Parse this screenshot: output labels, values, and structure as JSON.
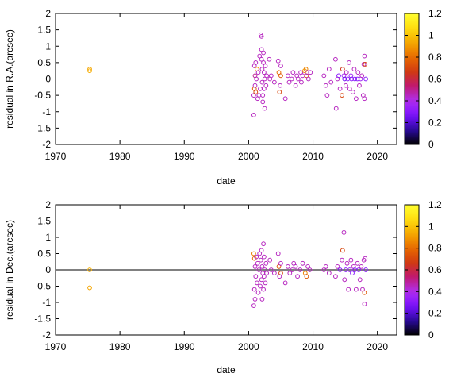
{
  "colors": {
    "palette_stops": [
      "#000000",
      "#2a0a9e",
      "#7a10ff",
      "#b030f0",
      "#c01870",
      "#d03a10",
      "#e86a00",
      "#f5a800",
      "#ffde10",
      "#ffff30"
    ],
    "zero_line": "#000000"
  },
  "chart_data": [
    {
      "type": "scatter",
      "title": "",
      "xlabel": "date",
      "ylabel": "residual in R.A.(arcsec)",
      "xlim": [
        1970,
        2023
      ],
      "ylim": [
        -2,
        2
      ],
      "xticks": [
        "1970",
        "1980",
        "1990",
        "2000",
        "2010",
        "2020"
      ],
      "yticks": [
        "-2",
        "-1.5",
        "-1",
        "-0.5",
        "0",
        "0.5",
        "1",
        "1.5",
        "2"
      ],
      "colorbar": {
        "range": [
          0,
          1.2
        ],
        "ticks": [
          "0",
          "0.2",
          "0.4",
          "0.6",
          "0.8",
          "1",
          "1.2"
        ]
      },
      "reference_line_y": 0,
      "grid": false,
      "marker": "open circle",
      "points": [
        {
          "x": 1975.3,
          "y": 0.25,
          "c": 0.95
        },
        {
          "x": 1975.3,
          "y": 0.3,
          "c": 0.93
        },
        {
          "x": 2000.8,
          "y": -1.1,
          "c": 0.45
        },
        {
          "x": 2000.8,
          "y": -0.5,
          "c": 0.45
        },
        {
          "x": 2000.9,
          "y": -0.3,
          "c": 0.75
        },
        {
          "x": 2000.9,
          "y": 0.4,
          "c": 0.45
        },
        {
          "x": 2001.0,
          "y": 0.1,
          "c": 0.5
        },
        {
          "x": 2001.0,
          "y": -0.2,
          "c": 0.45
        },
        {
          "x": 2001.1,
          "y": 0.5,
          "c": 0.45
        },
        {
          "x": 2001.1,
          "y": -0.4,
          "c": 0.7
        },
        {
          "x": 2001.2,
          "y": 0.0,
          "c": 0.45
        },
        {
          "x": 2001.3,
          "y": 0.3,
          "c": 0.9
        },
        {
          "x": 2001.4,
          "y": -0.6,
          "c": 0.45
        },
        {
          "x": 2001.5,
          "y": 0.2,
          "c": 0.45
        },
        {
          "x": 2001.6,
          "y": -0.5,
          "c": 0.45
        },
        {
          "x": 2001.7,
          "y": 0.7,
          "c": 0.45
        },
        {
          "x": 2001.8,
          "y": -0.3,
          "c": 0.45
        },
        {
          "x": 2001.9,
          "y": 1.35,
          "c": 0.45
        },
        {
          "x": 2002.0,
          "y": 1.3,
          "c": 0.45
        },
        {
          "x": 2002.0,
          "y": 0.9,
          "c": 0.45
        },
        {
          "x": 2002.0,
          "y": 0.6,
          "c": 0.45
        },
        {
          "x": 2002.1,
          "y": 0.3,
          "c": 0.45
        },
        {
          "x": 2002.1,
          "y": -0.1,
          "c": 0.45
        },
        {
          "x": 2002.2,
          "y": -0.5,
          "c": 0.45
        },
        {
          "x": 2002.2,
          "y": -0.7,
          "c": 0.45
        },
        {
          "x": 2002.3,
          "y": 0.8,
          "c": 0.45
        },
        {
          "x": 2002.3,
          "y": 0.5,
          "c": 0.45
        },
        {
          "x": 2002.4,
          "y": 0.2,
          "c": 0.45
        },
        {
          "x": 2002.4,
          "y": -0.3,
          "c": 0.45
        },
        {
          "x": 2002.5,
          "y": 0.0,
          "c": 0.45
        },
        {
          "x": 2002.5,
          "y": -0.9,
          "c": 0.45
        },
        {
          "x": 2002.6,
          "y": 0.4,
          "c": 0.45
        },
        {
          "x": 2002.7,
          "y": -0.2,
          "c": 0.45
        },
        {
          "x": 2002.8,
          "y": 0.1,
          "c": 0.45
        },
        {
          "x": 2003.2,
          "y": 0.6,
          "c": 0.45
        },
        {
          "x": 2003.3,
          "y": 0.0,
          "c": 0.45
        },
        {
          "x": 2003.5,
          "y": 0.1,
          "c": 0.45
        },
        {
          "x": 2004.0,
          "y": -0.1,
          "c": 0.45
        },
        {
          "x": 2004.6,
          "y": 0.55,
          "c": 0.45
        },
        {
          "x": 2004.7,
          "y": 0.2,
          "c": 0.8
        },
        {
          "x": 2004.8,
          "y": -0.4,
          "c": 0.7
        },
        {
          "x": 2004.9,
          "y": -0.2,
          "c": 0.45
        },
        {
          "x": 2005.0,
          "y": 0.1,
          "c": 0.75
        },
        {
          "x": 2005.0,
          "y": 0.4,
          "c": 0.45
        },
        {
          "x": 2005.7,
          "y": -0.6,
          "c": 0.45
        },
        {
          "x": 2006.1,
          "y": 0.1,
          "c": 0.45
        },
        {
          "x": 2006.3,
          "y": -0.1,
          "c": 0.45
        },
        {
          "x": 2006.7,
          "y": 0.0,
          "c": 0.45
        },
        {
          "x": 2006.9,
          "y": 0.2,
          "c": 0.45
        },
        {
          "x": 2007.3,
          "y": -0.2,
          "c": 0.45
        },
        {
          "x": 2007.5,
          "y": 0.1,
          "c": 0.45
        },
        {
          "x": 2007.7,
          "y": 0.0,
          "c": 0.45
        },
        {
          "x": 2008.1,
          "y": 0.2,
          "c": 0.45
        },
        {
          "x": 2008.2,
          "y": -0.1,
          "c": 0.45
        },
        {
          "x": 2008.4,
          "y": 0.1,
          "c": 0.45
        },
        {
          "x": 2008.7,
          "y": 0.25,
          "c": 0.9
        },
        {
          "x": 2008.9,
          "y": 0.3,
          "c": 0.85
        },
        {
          "x": 2009.0,
          "y": 0.1,
          "c": 0.75
        },
        {
          "x": 2009.1,
          "y": 0.2,
          "c": 0.45
        },
        {
          "x": 2009.3,
          "y": 0.0,
          "c": 0.45
        },
        {
          "x": 2009.6,
          "y": 0.2,
          "c": 0.45
        },
        {
          "x": 2011.7,
          "y": 0.1,
          "c": 0.45
        },
        {
          "x": 2012.0,
          "y": -0.2,
          "c": 0.45
        },
        {
          "x": 2012.2,
          "y": -0.5,
          "c": 0.45
        },
        {
          "x": 2012.5,
          "y": 0.3,
          "c": 0.45
        },
        {
          "x": 2012.8,
          "y": -0.1,
          "c": 0.45
        },
        {
          "x": 2013.5,
          "y": 0.6,
          "c": 0.45
        },
        {
          "x": 2013.6,
          "y": -0.9,
          "c": 0.45
        },
        {
          "x": 2013.8,
          "y": 0.0,
          "c": 0.45
        },
        {
          "x": 2014.0,
          "y": 0.1,
          "c": 0.3
        },
        {
          "x": 2014.2,
          "y": -0.3,
          "c": 0.45
        },
        {
          "x": 2014.5,
          "y": -0.5,
          "c": 0.7
        },
        {
          "x": 2014.6,
          "y": 0.3,
          "c": 0.65
        },
        {
          "x": 2014.8,
          "y": 0.1,
          "c": 0.35
        },
        {
          "x": 2014.9,
          "y": 0.0,
          "c": 0.25
        },
        {
          "x": 2015.1,
          "y": -0.2,
          "c": 0.45
        },
        {
          "x": 2015.2,
          "y": 0.2,
          "c": 0.45
        },
        {
          "x": 2015.4,
          "y": 0.0,
          "c": 0.3
        },
        {
          "x": 2015.6,
          "y": 0.5,
          "c": 0.45
        },
        {
          "x": 2015.7,
          "y": -0.3,
          "c": 0.45
        },
        {
          "x": 2015.9,
          "y": 0.1,
          "c": 0.35
        },
        {
          "x": 2016.0,
          "y": 0.0,
          "c": 0.3
        },
        {
          "x": 2016.2,
          "y": -0.4,
          "c": 0.45
        },
        {
          "x": 2016.4,
          "y": 0.3,
          "c": 0.45
        },
        {
          "x": 2016.5,
          "y": 0.0,
          "c": 0.3
        },
        {
          "x": 2016.7,
          "y": -0.6,
          "c": 0.45
        },
        {
          "x": 2016.9,
          "y": 0.0,
          "c": 0.3
        },
        {
          "x": 2017.0,
          "y": 0.2,
          "c": 0.45
        },
        {
          "x": 2017.2,
          "y": -0.2,
          "c": 0.45
        },
        {
          "x": 2017.4,
          "y": 0.0,
          "c": 0.35
        },
        {
          "x": 2017.6,
          "y": 0.1,
          "c": 0.45
        },
        {
          "x": 2017.8,
          "y": -0.5,
          "c": 0.45
        },
        {
          "x": 2017.9,
          "y": 0.45,
          "c": 0.45
        },
        {
          "x": 2018.0,
          "y": 0.7,
          "c": 0.45
        },
        {
          "x": 2018.0,
          "y": -0.6,
          "c": 0.45
        },
        {
          "x": 2018.1,
          "y": 0.45,
          "c": 0.7
        },
        {
          "x": 2018.2,
          "y": 0.0,
          "c": 0.3
        }
      ]
    },
    {
      "type": "scatter",
      "title": "",
      "xlabel": "date",
      "ylabel": "residual in Dec.(arcsec)",
      "xlim": [
        1970,
        2023
      ],
      "ylim": [
        -2,
        2
      ],
      "xticks": [
        "1970",
        "1980",
        "1990",
        "2000",
        "2010",
        "2020"
      ],
      "yticks": [
        "-2",
        "-1.5",
        "-1",
        "-0.5",
        "0",
        "0.5",
        "1",
        "1.5",
        "2"
      ],
      "colorbar": {
        "range": [
          0,
          1.2
        ],
        "ticks": [
          "0",
          "0.2",
          "0.4",
          "0.6",
          "0.8",
          "1",
          "1.2"
        ]
      },
      "reference_line_y": 0,
      "grid": false,
      "marker": "open circle",
      "points": [
        {
          "x": 1975.3,
          "y": 0.0,
          "c": 0.95
        },
        {
          "x": 1975.3,
          "y": -0.55,
          "c": 0.93
        },
        {
          "x": 2000.8,
          "y": 0.5,
          "c": 0.85
        },
        {
          "x": 2000.8,
          "y": -1.1,
          "c": 0.45
        },
        {
          "x": 2000.9,
          "y": -0.6,
          "c": 0.45
        },
        {
          "x": 2000.9,
          "y": 0.35,
          "c": 0.8
        },
        {
          "x": 2001.0,
          "y": 0.1,
          "c": 0.45
        },
        {
          "x": 2001.0,
          "y": -0.9,
          "c": 0.45
        },
        {
          "x": 2001.1,
          "y": -0.2,
          "c": 0.45
        },
        {
          "x": 2001.2,
          "y": 0.4,
          "c": 0.45
        },
        {
          "x": 2001.3,
          "y": -0.4,
          "c": 0.45
        },
        {
          "x": 2001.4,
          "y": 0.2,
          "c": 0.45
        },
        {
          "x": 2001.5,
          "y": -0.7,
          "c": 0.45
        },
        {
          "x": 2001.6,
          "y": 0.0,
          "c": 0.45
        },
        {
          "x": 2001.7,
          "y": 0.5,
          "c": 0.45
        },
        {
          "x": 2001.8,
          "y": -0.5,
          "c": 0.45
        },
        {
          "x": 2001.9,
          "y": 0.3,
          "c": 0.45
        },
        {
          "x": 2002.0,
          "y": -0.3,
          "c": 0.45
        },
        {
          "x": 2002.0,
          "y": 0.6,
          "c": 0.45
        },
        {
          "x": 2002.1,
          "y": -0.9,
          "c": 0.45
        },
        {
          "x": 2002.1,
          "y": 0.1,
          "c": 0.45
        },
        {
          "x": 2002.2,
          "y": -0.1,
          "c": 0.45
        },
        {
          "x": 2002.3,
          "y": 0.8,
          "c": 0.45
        },
        {
          "x": 2002.3,
          "y": -0.6,
          "c": 0.45
        },
        {
          "x": 2002.4,
          "y": 0.4,
          "c": 0.45
        },
        {
          "x": 2002.4,
          "y": -0.2,
          "c": 0.45
        },
        {
          "x": 2002.5,
          "y": 0.0,
          "c": 0.45
        },
        {
          "x": 2002.6,
          "y": -0.4,
          "c": 0.45
        },
        {
          "x": 2002.7,
          "y": 0.2,
          "c": 0.45
        },
        {
          "x": 2002.8,
          "y": -0.1,
          "c": 0.45
        },
        {
          "x": 2003.3,
          "y": 0.3,
          "c": 0.45
        },
        {
          "x": 2003.5,
          "y": 0.0,
          "c": 0.45
        },
        {
          "x": 2004.0,
          "y": -0.1,
          "c": 0.45
        },
        {
          "x": 2004.6,
          "y": 0.5,
          "c": 0.45
        },
        {
          "x": 2004.7,
          "y": 0.1,
          "c": 0.75
        },
        {
          "x": 2004.8,
          "y": -0.2,
          "c": 0.45
        },
        {
          "x": 2005.0,
          "y": 0.2,
          "c": 0.45
        },
        {
          "x": 2005.0,
          "y": -0.1,
          "c": 0.7
        },
        {
          "x": 2005.7,
          "y": -0.4,
          "c": 0.45
        },
        {
          "x": 2006.1,
          "y": 0.1,
          "c": 0.45
        },
        {
          "x": 2006.4,
          "y": -0.1,
          "c": 0.45
        },
        {
          "x": 2006.8,
          "y": 0.0,
          "c": 0.45
        },
        {
          "x": 2007.0,
          "y": 0.2,
          "c": 0.45
        },
        {
          "x": 2007.3,
          "y": 0.1,
          "c": 0.45
        },
        {
          "x": 2007.6,
          "y": -0.2,
          "c": 0.45
        },
        {
          "x": 2008.0,
          "y": 0.0,
          "c": 0.45
        },
        {
          "x": 2008.4,
          "y": 0.2,
          "c": 0.45
        },
        {
          "x": 2008.8,
          "y": -0.1,
          "c": 0.85
        },
        {
          "x": 2009.0,
          "y": -0.2,
          "c": 0.75
        },
        {
          "x": 2009.2,
          "y": 0.1,
          "c": 0.45
        },
        {
          "x": 2009.5,
          "y": 0.0,
          "c": 0.45
        },
        {
          "x": 2011.7,
          "y": 0.0,
          "c": 0.45
        },
        {
          "x": 2012.0,
          "y": 0.1,
          "c": 0.45
        },
        {
          "x": 2012.5,
          "y": -0.1,
          "c": 0.45
        },
        {
          "x": 2013.5,
          "y": -0.2,
          "c": 0.45
        },
        {
          "x": 2013.8,
          "y": 0.1,
          "c": 0.45
        },
        {
          "x": 2014.2,
          "y": 0.0,
          "c": 0.3
        },
        {
          "x": 2014.5,
          "y": 0.3,
          "c": 0.45
        },
        {
          "x": 2014.6,
          "y": 0.6,
          "c": 0.7
        },
        {
          "x": 2014.8,
          "y": 1.15,
          "c": 0.45
        },
        {
          "x": 2014.9,
          "y": -0.3,
          "c": 0.45
        },
        {
          "x": 2015.1,
          "y": 0.0,
          "c": 0.3
        },
        {
          "x": 2015.3,
          "y": 0.2,
          "c": 0.45
        },
        {
          "x": 2015.5,
          "y": -0.6,
          "c": 0.45
        },
        {
          "x": 2015.7,
          "y": 0.0,
          "c": 0.35
        },
        {
          "x": 2015.9,
          "y": 0.3,
          "c": 0.45
        },
        {
          "x": 2016.1,
          "y": -0.1,
          "c": 0.3
        },
        {
          "x": 2016.3,
          "y": 0.1,
          "c": 0.45
        },
        {
          "x": 2016.5,
          "y": 0.0,
          "c": 0.3
        },
        {
          "x": 2016.7,
          "y": -0.6,
          "c": 0.45
        },
        {
          "x": 2016.9,
          "y": 0.2,
          "c": 0.45
        },
        {
          "x": 2017.1,
          "y": 0.0,
          "c": 0.3
        },
        {
          "x": 2017.3,
          "y": -0.3,
          "c": 0.45
        },
        {
          "x": 2017.5,
          "y": 0.1,
          "c": 0.45
        },
        {
          "x": 2017.7,
          "y": -0.6,
          "c": 0.45
        },
        {
          "x": 2017.9,
          "y": 0.3,
          "c": 0.45
        },
        {
          "x": 2018.0,
          "y": -0.7,
          "c": 0.75
        },
        {
          "x": 2018.0,
          "y": -1.05,
          "c": 0.45
        },
        {
          "x": 2018.1,
          "y": 0.35,
          "c": 0.45
        },
        {
          "x": 2018.2,
          "y": 0.0,
          "c": 0.3
        }
      ]
    }
  ]
}
